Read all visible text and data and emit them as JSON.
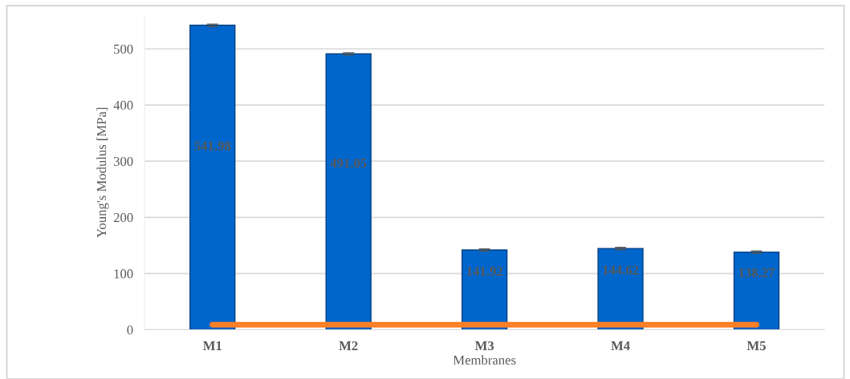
{
  "chart_data": {
    "type": "bar",
    "xlabel": "Membranes",
    "ylabel": "Young's Modulus [MPa]",
    "categories": [
      "M1",
      "M2",
      "M3",
      "M4",
      "M5"
    ],
    "series": [
      {
        "color": "#0066cc",
        "values": [
          541.98,
          491.05,
          141.92,
          144.62,
          138.27
        ],
        "errors": [
          2,
          2,
          2,
          2,
          2
        ],
        "value_labels": [
          "541.98",
          "491.05",
          "141.92",
          "144.62",
          "138.27"
        ]
      },
      {
        "type": "line",
        "color": "#ff7f27",
        "values": [
          9,
          9,
          9,
          9,
          9
        ]
      }
    ],
    "ylim": [
      0,
      560
    ],
    "yticks": [
      0,
      100,
      200,
      300,
      400,
      500
    ],
    "grid": "y",
    "legend": false
  }
}
